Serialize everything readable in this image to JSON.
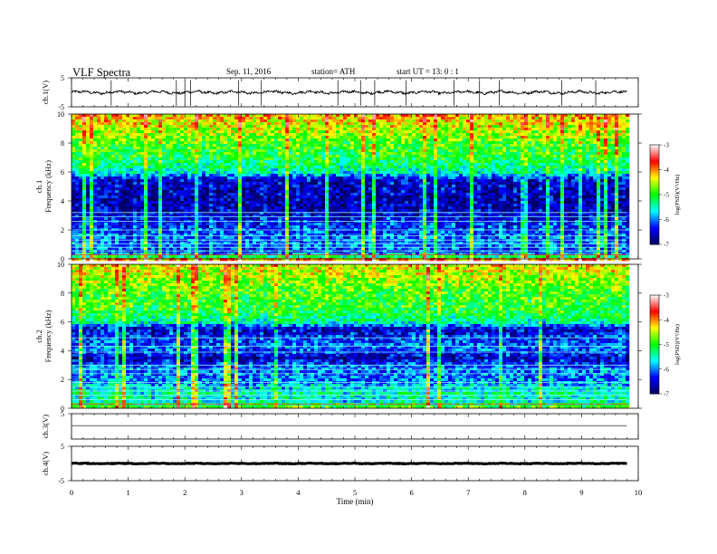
{
  "header": {
    "title": "VLF  Spectra",
    "date": "Sep. 11, 2016",
    "station": "station= ATH",
    "start": "start  UT =   13: 0  : 1"
  },
  "chart_data": [
    {
      "type": "line",
      "name": "ch1-waveform",
      "ylabel": "ch.1(V)",
      "ylim": [
        -5,
        5
      ],
      "y_ticks": [
        "5",
        "-5"
      ],
      "xlim": [
        0,
        10
      ],
      "data_extent_min": [
        0,
        9.8
      ],
      "level": 0,
      "amplitude": 0.8,
      "spike_times_min": [
        0.7,
        1.85,
        2.0,
        2.1,
        2.95,
        3.35,
        4.7,
        5.1,
        5.35,
        5.9,
        6.75,
        7.2,
        7.55,
        8.65,
        9.25
      ],
      "color": "#000000"
    },
    {
      "type": "heatmap",
      "name": "ch1-spectrogram",
      "ylabel": "Frequency (kHz)",
      "channel_label": "ch.1",
      "xlim": [
        0,
        10
      ],
      "ylim": [
        0,
        10
      ],
      "y_ticks": [
        "0",
        "2",
        "4",
        "6",
        "8",
        "10"
      ],
      "data_extent_min": [
        0,
        9.8
      ],
      "profile": [
        {
          "f_khz": 0.0,
          "log_psd": -4.8
        },
        {
          "f_khz": 0.5,
          "log_psd": -6.3
        },
        {
          "f_khz": 1.0,
          "log_psd": -6.0
        },
        {
          "f_khz": 2.0,
          "log_psd": -6.2
        },
        {
          "f_khz": 3.0,
          "log_psd": -6.5
        },
        {
          "f_khz": 4.0,
          "log_psd": -6.7
        },
        {
          "f_khz": 5.5,
          "log_psd": -6.5
        },
        {
          "f_khz": 6.0,
          "log_psd": -5.5
        },
        {
          "f_khz": 7.0,
          "log_psd": -5.1
        },
        {
          "f_khz": 8.0,
          "log_psd": -4.9
        },
        {
          "f_khz": 9.0,
          "log_psd": -4.5
        },
        {
          "f_khz": 10.0,
          "log_psd": -4.1
        }
      ],
      "narrowband_lines_khz": [
        0.3,
        0.55,
        0.8,
        1.05,
        1.3,
        1.6,
        2.0,
        2.6,
        2.9,
        3.2
      ],
      "colorbar": {
        "label": "log(PSD)(V²/Hz)",
        "range": [
          -7,
          -3
        ],
        "ticks": [
          "-3",
          "-4",
          "-5",
          "-6",
          "-7"
        ]
      }
    },
    {
      "type": "heatmap",
      "name": "ch2-spectrogram",
      "ylabel": "Frequency (kHz)",
      "channel_label": "ch.2",
      "xlim": [
        0,
        10
      ],
      "ylim": [
        0,
        10
      ],
      "y_ticks": [
        "0",
        "2",
        "4",
        "6",
        "8",
        "10"
      ],
      "data_extent_min": [
        0,
        9.8
      ],
      "profile": [
        {
          "f_khz": 0.0,
          "log_psd": -4.8
        },
        {
          "f_khz": 0.5,
          "log_psd": -5.6
        },
        {
          "f_khz": 1.0,
          "log_psd": -5.4
        },
        {
          "f_khz": 2.0,
          "log_psd": -6.0
        },
        {
          "f_khz": 2.8,
          "log_psd": -6.0
        },
        {
          "f_khz": 3.5,
          "log_psd": -6.6
        },
        {
          "f_khz": 4.2,
          "log_psd": -6.0
        },
        {
          "f_khz": 5.0,
          "log_psd": -6.3
        },
        {
          "f_khz": 5.5,
          "log_psd": -6.6
        },
        {
          "f_khz": 6.0,
          "log_psd": -5.4
        },
        {
          "f_khz": 7.0,
          "log_psd": -5.0
        },
        {
          "f_khz": 8.0,
          "log_psd": -4.9
        },
        {
          "f_khz": 9.0,
          "log_psd": -4.6
        },
        {
          "f_khz": 10.0,
          "log_psd": -4.3
        }
      ],
      "narrowband_lines_khz": [
        0.3,
        0.6,
        0.9,
        1.2,
        1.5,
        1.8,
        2.4,
        2.7,
        3.0,
        3.9,
        4.3,
        4.9
      ],
      "colorbar": {
        "label": "log(PSD)(V²/Hz)",
        "range": [
          -7,
          -3
        ],
        "ticks": [
          "-3",
          "-4",
          "-5",
          "-6",
          "-7"
        ]
      }
    },
    {
      "type": "line",
      "name": "ch3-waveform",
      "ylabel": "ch.3(V)",
      "ylim": [
        -5,
        5
      ],
      "y_ticks": [
        "5"
      ],
      "xlim": [
        0,
        10
      ],
      "data_extent_min": [
        0,
        9.8
      ],
      "level": 0.3,
      "amplitude": 0.0,
      "color": "#000000"
    },
    {
      "type": "line",
      "name": "ch4-waveform",
      "ylabel": "ch.4(V)",
      "ylim": [
        -5,
        5
      ],
      "y_ticks": [
        "5",
        "-5"
      ],
      "xlim": [
        0,
        10
      ],
      "data_extent_min": [
        0,
        9.8
      ],
      "level": 0,
      "amplitude": 0.15,
      "spike_times_min": [
        1.0,
        2.0,
        3.0,
        4.0,
        5.0,
        6.0,
        7.0,
        8.0,
        9.0
      ],
      "color": "#000000"
    }
  ],
  "x_axis": {
    "label": "Time  (min)",
    "range": [
      0,
      10
    ],
    "ticks": [
      "0",
      "1",
      "2",
      "3",
      "4",
      "5",
      "6",
      "7",
      "8",
      "9",
      "10"
    ]
  },
  "colormap": [
    "#000060",
    "#0000ff",
    "#00ffff",
    "#00ff00",
    "#ffff00",
    "#ff0000",
    "#ffffff"
  ]
}
